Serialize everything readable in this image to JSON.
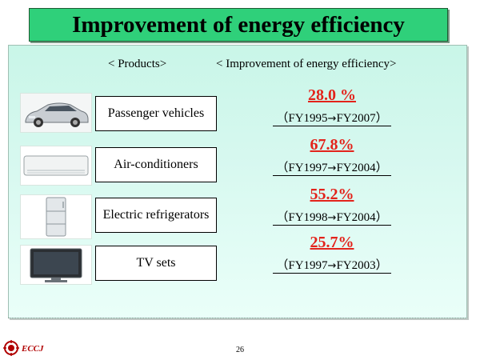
{
  "title": "Improvement of energy efficiency",
  "headers": {
    "products": "< Products>",
    "improvement": "< Improvement of energy efficiency>"
  },
  "rows": [
    {
      "product": "Passenger vehicles",
      "icon": "car-icon",
      "percent": "28.0 %",
      "period_open": "（FY1995",
      "period_close": "FY2007）"
    },
    {
      "product": "Air-conditioners",
      "icon": "air-conditioner-icon",
      "percent": "67.8%",
      "period_open": "（FY1997",
      "period_close": "FY2004）"
    },
    {
      "product": "Electric refrigerators",
      "icon": "refrigerator-icon",
      "percent": "55.2%",
      "period_open": "（FY1998",
      "period_close": "FY2004）"
    },
    {
      "product": "TV sets",
      "icon": "tv-icon",
      "percent": "25.7%",
      "period_open": "（FY1997",
      "period_close": "FY2003）"
    }
  ],
  "arrow": "→",
  "footer": {
    "org": "ECCJ",
    "page": "26"
  },
  "colors": {
    "title_bg": "#2fd07a",
    "percent": "#e3231b",
    "panel": "#d6f8ef",
    "logo": "#b00000"
  }
}
